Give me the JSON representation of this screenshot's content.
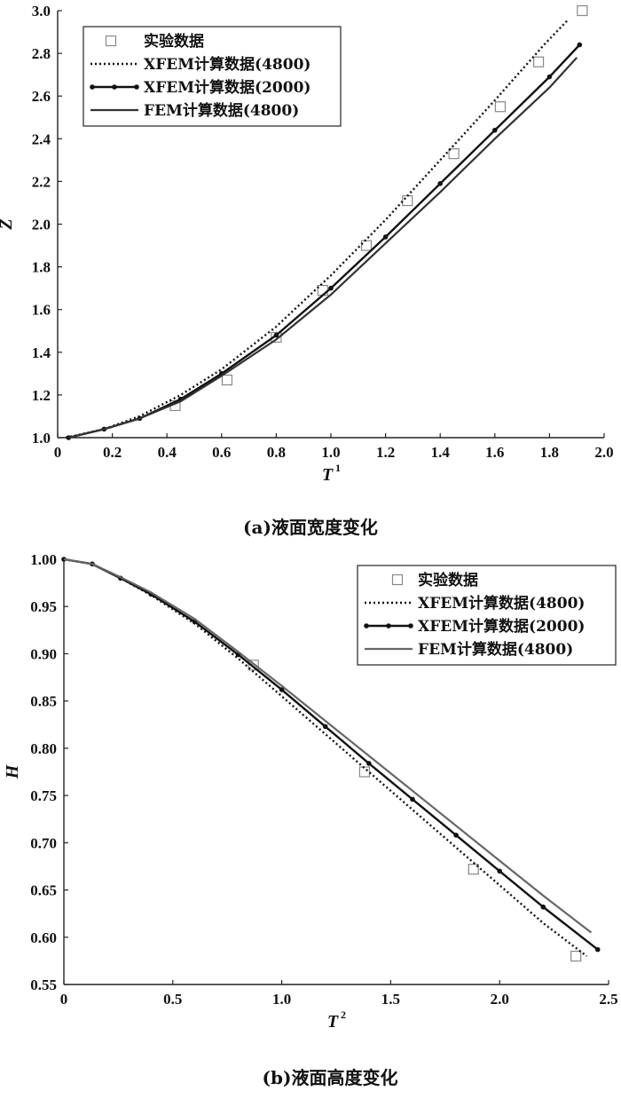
{
  "chart_data": [
    {
      "type": "line",
      "caption": "(a)液面宽度变化",
      "xlabel": "T",
      "xlabel_sup": "1",
      "ylabel": "Z",
      "xlim": [
        0,
        2.0
      ],
      "ylim": [
        1.0,
        3.0
      ],
      "xticks": [
        0,
        0.2,
        0.4,
        0.6,
        0.8,
        1.0,
        1.2,
        1.4,
        1.6,
        1.8,
        2.0
      ],
      "xtick_labels": [
        "0",
        "0.2",
        "0.4",
        "0.6",
        "0.8",
        "1.0",
        "1.2",
        "1.4",
        "1.6",
        "1.8",
        "2.0"
      ],
      "yticks": [
        1.0,
        1.2,
        1.4,
        1.6,
        1.8,
        2.0,
        2.2,
        2.4,
        2.6,
        2.8,
        3.0
      ],
      "ytick_labels": [
        "1.0",
        "1.2",
        "1.4",
        "1.6",
        "1.8",
        "2.0",
        "2.2",
        "2.4",
        "2.6",
        "2.8",
        "3.0"
      ],
      "legend_position": "top-left",
      "series": [
        {
          "name": "实验数据",
          "style": "square-markers",
          "x": [
            0.43,
            0.62,
            0.8,
            0.97,
            1.13,
            1.28,
            1.45,
            1.62,
            1.76,
            1.92
          ],
          "y": [
            1.15,
            1.27,
            1.47,
            1.69,
            1.9,
            2.11,
            2.33,
            2.55,
            2.76,
            3.0
          ]
        },
        {
          "name": "XFEM计算数据(4800)",
          "style": "dotted",
          "x": [
            0.03,
            0.17,
            0.3,
            0.45,
            0.6,
            0.8,
            1.0,
            1.2,
            1.4,
            1.6,
            1.78,
            1.87
          ],
          "y": [
            1.0,
            1.04,
            1.1,
            1.2,
            1.32,
            1.52,
            1.76,
            2.02,
            2.3,
            2.58,
            2.84,
            2.96
          ]
        },
        {
          "name": "XFEM计算数据(2000)",
          "style": "solid-dots",
          "x": [
            0.04,
            0.17,
            0.3,
            0.45,
            0.6,
            0.8,
            1.0,
            1.2,
            1.4,
            1.6,
            1.8,
            1.91
          ],
          "y": [
            1.0,
            1.04,
            1.09,
            1.18,
            1.3,
            1.48,
            1.7,
            1.94,
            2.19,
            2.44,
            2.69,
            2.84
          ]
        },
        {
          "name": "FEM计算数据(4800)",
          "style": "solid",
          "x": [
            0.04,
            0.17,
            0.3,
            0.45,
            0.6,
            0.8,
            1.0,
            1.2,
            1.4,
            1.6,
            1.8,
            1.9
          ],
          "y": [
            1.0,
            1.04,
            1.09,
            1.17,
            1.29,
            1.46,
            1.67,
            1.91,
            2.15,
            2.4,
            2.64,
            2.78
          ]
        }
      ]
    },
    {
      "type": "line",
      "caption": "(b)液面高度变化",
      "xlabel": "T",
      "xlabel_sup": "2",
      "ylabel": "H",
      "xlim": [
        0,
        2.5
      ],
      "ylim": [
        0.55,
        1.0
      ],
      "xticks": [
        0,
        0.5,
        1.0,
        1.5,
        2.0,
        2.5
      ],
      "xtick_labels": [
        "0",
        "0.5",
        "1.0",
        "1.5",
        "2.0",
        "2.5"
      ],
      "yticks": [
        0.55,
        0.6,
        0.65,
        0.7,
        0.75,
        0.8,
        0.85,
        0.9,
        0.95,
        1.0
      ],
      "ytick_labels": [
        "0.55",
        "0.60",
        "0.65",
        "0.70",
        "0.75",
        "0.80",
        "0.85",
        "0.90",
        "0.95",
        "1.00"
      ],
      "legend_position": "top-right",
      "series": [
        {
          "name": "实验数据",
          "style": "square-markers",
          "x": [
            0.87,
            1.38,
            1.88,
            2.35
          ],
          "y": [
            0.888,
            0.775,
            0.672,
            0.58
          ]
        },
        {
          "name": "XFEM计算数据(4800)",
          "style": "dotted",
          "x": [
            0.0,
            0.13,
            0.26,
            0.4,
            0.6,
            0.8,
            1.0,
            1.2,
            1.4,
            1.6,
            1.8,
            2.0,
            2.2,
            2.4
          ],
          "y": [
            1.0,
            0.995,
            0.98,
            0.962,
            0.932,
            0.895,
            0.855,
            0.815,
            0.775,
            0.735,
            0.695,
            0.655,
            0.615,
            0.58
          ]
        },
        {
          "name": "XFEM计算数据(2000)",
          "style": "solid-dots",
          "x": [
            0.0,
            0.13,
            0.26,
            0.4,
            0.6,
            0.8,
            1.0,
            1.2,
            1.4,
            1.6,
            1.8,
            2.0,
            2.2,
            2.45
          ],
          "y": [
            1.0,
            0.995,
            0.98,
            0.963,
            0.934,
            0.899,
            0.862,
            0.823,
            0.784,
            0.746,
            0.708,
            0.67,
            0.632,
            0.587
          ]
        },
        {
          "name": "FEM计算数据(4800)",
          "style": "solid",
          "x": [
            0.0,
            0.13,
            0.26,
            0.4,
            0.6,
            0.8,
            1.0,
            1.2,
            1.4,
            1.6,
            1.8,
            2.0,
            2.2,
            2.42
          ],
          "y": [
            1.0,
            0.995,
            0.981,
            0.965,
            0.937,
            0.902,
            0.866,
            0.829,
            0.792,
            0.755,
            0.718,
            0.681,
            0.644,
            0.605
          ]
        }
      ]
    }
  ]
}
